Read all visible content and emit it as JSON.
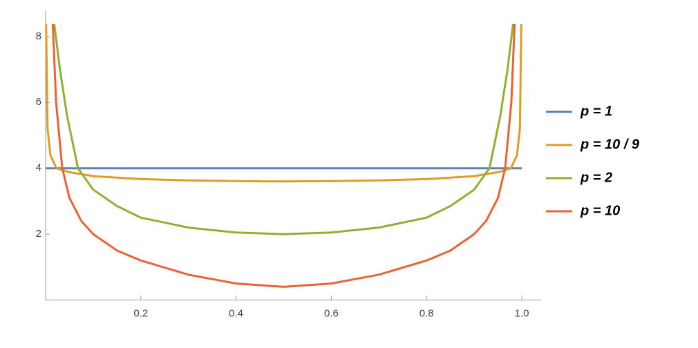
{
  "chart_data": {
    "type": "line",
    "xlim": [
      0,
      1.04
    ],
    "ylim": [
      0,
      8.8
    ],
    "xticks": [
      0.2,
      0.4,
      0.6,
      0.8,
      {
        "value": 1,
        "label": "1.0"
      }
    ],
    "yticks": [
      2,
      4,
      6,
      8
    ],
    "series": [
      {
        "name": "p = 1",
        "color": "#5e81b5",
        "x": [
          0,
          1
        ],
        "values": [
          4,
          4
        ]
      },
      {
        "name": "p = 10 / 9",
        "color": "#e19c24",
        "x": [
          0.001,
          0.004,
          0.01,
          0.023,
          0.05,
          0.1,
          0.2,
          0.3,
          0.4,
          0.5,
          0.6,
          0.7,
          0.8,
          0.9,
          0.95,
          0.977,
          0.99,
          0.996,
          0.999
        ],
        "values": [
          8.4,
          5.2,
          4.4,
          4.0,
          3.88,
          3.76,
          3.67,
          3.63,
          3.61,
          3.6,
          3.61,
          3.63,
          3.67,
          3.76,
          3.88,
          4.0,
          4.4,
          5.2,
          8.4
        ]
      },
      {
        "name": "p = 2",
        "color": "#8fb032",
        "x": [
          0.018,
          0.03,
          0.045,
          0.068,
          0.1,
          0.15,
          0.2,
          0.3,
          0.4,
          0.5,
          0.6,
          0.7,
          0.8,
          0.85,
          0.9,
          0.932,
          0.955,
          0.97,
          0.982
        ],
        "values": [
          8.4,
          7.0,
          5.6,
          4.0,
          3.35,
          2.85,
          2.5,
          2.2,
          2.05,
          2.0,
          2.05,
          2.2,
          2.5,
          2.85,
          3.35,
          4.0,
          5.6,
          7.0,
          8.4
        ]
      },
      {
        "name": "p = 10",
        "color": "#eb6235",
        "x": [
          0.015,
          0.022,
          0.035,
          0.05,
          0.075,
          0.1,
          0.15,
          0.2,
          0.3,
          0.4,
          0.5,
          0.6,
          0.7,
          0.8,
          0.85,
          0.9,
          0.925,
          0.95,
          0.965,
          0.978,
          0.985
        ],
        "values": [
          8.4,
          6.0,
          4.0,
          3.1,
          2.4,
          2.0,
          1.5,
          1.2,
          0.77,
          0.5,
          0.4,
          0.5,
          0.77,
          1.2,
          1.5,
          2.0,
          2.4,
          3.1,
          4.0,
          6.0,
          8.4
        ]
      }
    ]
  }
}
